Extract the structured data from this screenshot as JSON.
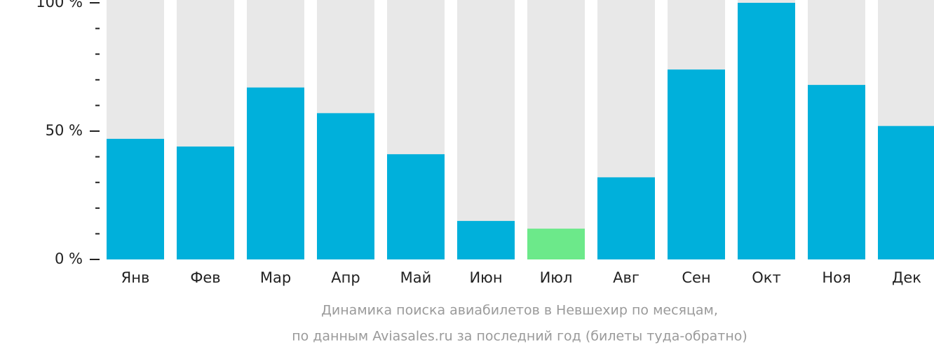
{
  "chart_data": {
    "type": "bar",
    "caption": [
      "Динамика поиска авиабилетов в Невшехир по месяцам,",
      "по данным Aviasales.ru за последний год (билеты туда-обратно)"
    ],
    "categories": [
      "Янв",
      "Фев",
      "Мар",
      "Апр",
      "Май",
      "Июн",
      "Июл",
      "Авг",
      "Сен",
      "Окт",
      "Ноя",
      "Дек"
    ],
    "values": [
      47,
      44,
      67,
      57,
      41,
      15,
      12,
      32,
      74,
      100,
      68,
      52
    ],
    "colors": [
      "#00b0db",
      "#00b0db",
      "#00b0db",
      "#00b0db",
      "#00b0db",
      "#00b0db",
      "#6ce98a",
      "#00b0db",
      "#00b0db",
      "#00b0db",
      "#00b0db",
      "#00b0db"
    ],
    "track_color": "#e8e8e8",
    "ylim": [
      0,
      100
    ],
    "yticks": [
      {
        "value": 0,
        "label": "0 %"
      },
      {
        "value": 50,
        "label": "50 %"
      },
      {
        "value": 100,
        "label": "100 %"
      }
    ],
    "yticks_minor": [
      10,
      20,
      30,
      40,
      60,
      70,
      80,
      90
    ]
  }
}
